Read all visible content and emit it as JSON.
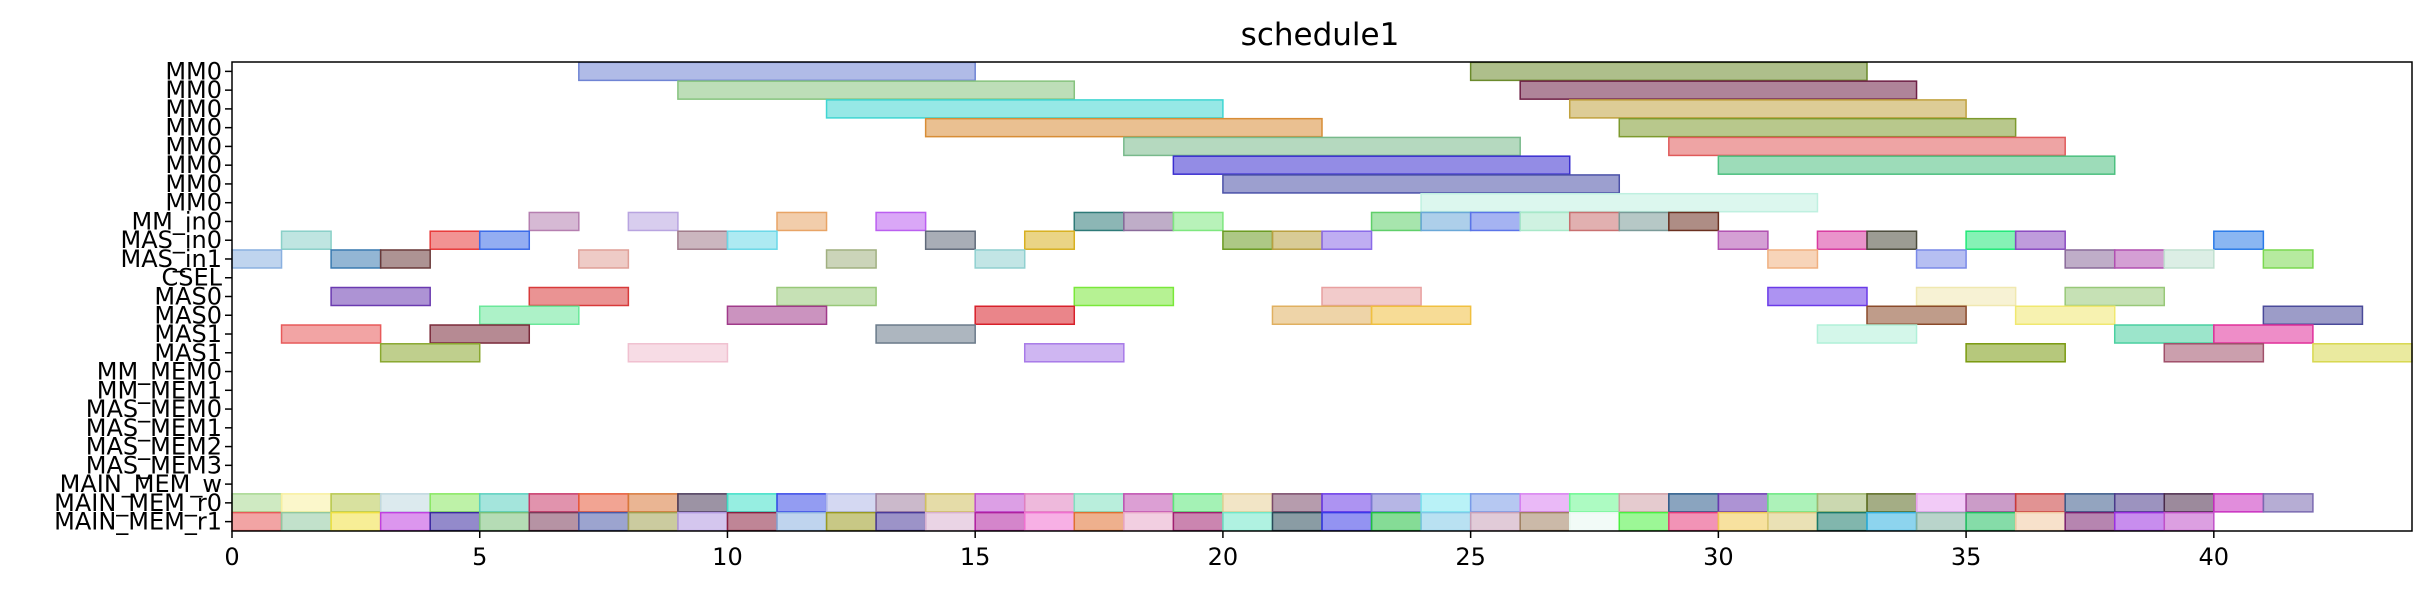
{
  "chart_data": {
    "type": "gantt",
    "title": "schedule1",
    "xlabel": "",
    "ylabel": "",
    "xlim": [
      0,
      44
    ],
    "xticks": [
      0,
      5,
      10,
      15,
      20,
      25,
      30,
      35,
      40
    ],
    "grid": false,
    "rows": [
      "MM0",
      "MM0",
      "MM0",
      "MM0",
      "MM0",
      "MM0",
      "MM0",
      "MM0",
      "MM_in0",
      "MAS_in0",
      "MAS_in1",
      "CSEL",
      "MAS0",
      "MAS0",
      "MAS1",
      "MAS1",
      "MM_MEM0",
      "MM_MEM1",
      "MAS_MEM0",
      "MAS_MEM1",
      "MAS_MEM2",
      "MAS_MEM3",
      "MAIN_MEM_w",
      "MAIN_MEM_r0",
      "MAIN_MEM_r1"
    ],
    "tasks": [
      {
        "row": 0,
        "start": 7,
        "end": 15,
        "color": "#6f84d4"
      },
      {
        "row": 0,
        "start": 25,
        "end": 33,
        "color": "#6b8a2c"
      },
      {
        "row": 1,
        "start": 9,
        "end": 17,
        "color": "#86c37e"
      },
      {
        "row": 1,
        "start": 26,
        "end": 34,
        "color": "#6e1f45"
      },
      {
        "row": 2,
        "start": 12,
        "end": 20,
        "color": "#3fd6d2"
      },
      {
        "row": 2,
        "start": 27,
        "end": 35,
        "color": "#c1a23f"
      },
      {
        "row": 3,
        "start": 14,
        "end": 22,
        "color": "#d88d36"
      },
      {
        "row": 3,
        "start": 28,
        "end": 36,
        "color": "#7d9a2e"
      },
      {
        "row": 4,
        "start": 18,
        "end": 26,
        "color": "#78b98b"
      },
      {
        "row": 4,
        "start": 29,
        "end": 37,
        "color": "#e05a5a"
      },
      {
        "row": 5,
        "start": 19,
        "end": 27,
        "color": "#3a2ed0"
      },
      {
        "row": 5,
        "start": 30,
        "end": 38,
        "color": "#4cc07f"
      },
      {
        "row": 6,
        "start": 20,
        "end": 28,
        "color": "#4b51a8"
      },
      {
        "row": 7,
        "start": 24,
        "end": 32,
        "color": "#bff0e0"
      },
      {
        "row": 8,
        "start": 6,
        "end": 7,
        "color": "#b57fb0"
      },
      {
        "row": 8,
        "start": 8,
        "end": 9,
        "color": "#b8a4e0"
      },
      {
        "row": 8,
        "start": 11,
        "end": 12,
        "color": "#e8a466"
      },
      {
        "row": 8,
        "start": 13,
        "end": 14,
        "color": "#bb5ff0"
      },
      {
        "row": 8,
        "start": 17,
        "end": 18,
        "color": "#2e7a78"
      },
      {
        "row": 8,
        "start": 18,
        "end": 19,
        "color": "#8a6a9a"
      },
      {
        "row": 8,
        "start": 19,
        "end": 20,
        "color": "#7ee77f"
      },
      {
        "row": 8,
        "start": 23,
        "end": 24,
        "color": "#5fcf6a"
      },
      {
        "row": 8,
        "start": 24,
        "end": 25,
        "color": "#6aa8d8"
      },
      {
        "row": 8,
        "start": 25,
        "end": 26,
        "color": "#5b74e8"
      },
      {
        "row": 8,
        "start": 26,
        "end": 27,
        "color": "#a8e8c8"
      },
      {
        "row": 8,
        "start": 27,
        "end": 28,
        "color": "#c87070"
      },
      {
        "row": 8,
        "start": 28,
        "end": 29,
        "color": "#7a9a98"
      },
      {
        "row": 8,
        "start": 29,
        "end": 30,
        "color": "#6b3020"
      },
      {
        "row": 9,
        "start": 1,
        "end": 2,
        "color": "#8ad0c8"
      },
      {
        "row": 9,
        "start": 4,
        "end": 5,
        "color": "#e83a3a"
      },
      {
        "row": 9,
        "start": 5,
        "end": 6,
        "color": "#3a6ae8"
      },
      {
        "row": 9,
        "start": 9,
        "end": 10,
        "color": "#a07a8a"
      },
      {
        "row": 9,
        "start": 10,
        "end": 11,
        "color": "#6ad8e8"
      },
      {
        "row": 9,
        "start": 14,
        "end": 15,
        "color": "#606a7a"
      },
      {
        "row": 9,
        "start": 16,
        "end": 17,
        "color": "#d8b020"
      },
      {
        "row": 9,
        "start": 20,
        "end": 21,
        "color": "#6a9a20"
      },
      {
        "row": 9,
        "start": 21,
        "end": 22,
        "color": "#b8a040"
      },
      {
        "row": 9,
        "start": 22,
        "end": 23,
        "color": "#8a6ae8"
      },
      {
        "row": 9,
        "start": 30,
        "end": 31,
        "color": "#b050b0"
      },
      {
        "row": 9,
        "start": 32,
        "end": 33,
        "color": "#d83aa0"
      },
      {
        "row": 9,
        "start": 33,
        "end": 34,
        "color": "#4a4a3a"
      },
      {
        "row": 9,
        "start": 35,
        "end": 36,
        "color": "#20e878"
      },
      {
        "row": 9,
        "start": 36,
        "end": 37,
        "color": "#8a4ac0"
      },
      {
        "row": 9,
        "start": 40,
        "end": 41,
        "color": "#2a7ae8"
      },
      {
        "row": 10,
        "start": 0,
        "end": 1,
        "color": "#8ab0e0"
      },
      {
        "row": 10,
        "start": 2,
        "end": 3,
        "color": "#3a7ab0"
      },
      {
        "row": 10,
        "start": 3,
        "end": 4,
        "color": "#6a3a3a"
      },
      {
        "row": 10,
        "start": 7,
        "end": 8,
        "color": "#e0a098"
      },
      {
        "row": 10,
        "start": 12,
        "end": 13,
        "color": "#a0b080"
      },
      {
        "row": 10,
        "start": 15,
        "end": 16,
        "color": "#90d0d0"
      },
      {
        "row": 10,
        "start": 31,
        "end": 32,
        "color": "#f0b080"
      },
      {
        "row": 10,
        "start": 34,
        "end": 35,
        "color": "#7a8ae8"
      },
      {
        "row": 10,
        "start": 37,
        "end": 38,
        "color": "#8a6a9a"
      },
      {
        "row": 10,
        "start": 38,
        "end": 39,
        "color": "#b050b0"
      },
      {
        "row": 10,
        "start": 39,
        "end": 40,
        "color": "#c0e0d0"
      },
      {
        "row": 10,
        "start": 41,
        "end": 42,
        "color": "#7ad850"
      },
      {
        "row": 12,
        "start": 2,
        "end": 4,
        "color": "#6a3ab0"
      },
      {
        "row": 12,
        "start": 6,
        "end": 8,
        "color": "#d83a3a"
      },
      {
        "row": 12,
        "start": 11,
        "end": 13,
        "color": "#98c878"
      },
      {
        "row": 12,
        "start": 17,
        "end": 19,
        "color": "#7ae83a"
      },
      {
        "row": 12,
        "start": 22,
        "end": 24,
        "color": "#e8a0a0"
      },
      {
        "row": 12,
        "start": 31,
        "end": 33,
        "color": "#6a3ae8"
      },
      {
        "row": 12,
        "start": 34,
        "end": 36,
        "color": "#f0e8b0"
      },
      {
        "row": 12,
        "start": 37,
        "end": 39,
        "color": "#98c878"
      },
      {
        "row": 13,
        "start": 5,
        "end": 7,
        "color": "#6ae89a"
      },
      {
        "row": 13,
        "start": 10,
        "end": 12,
        "color": "#a03a8a"
      },
      {
        "row": 13,
        "start": 15,
        "end": 17,
        "color": "#d8202a"
      },
      {
        "row": 13,
        "start": 21,
        "end": 23,
        "color": "#e0b060"
      },
      {
        "row": 13,
        "start": 23,
        "end": 25,
        "color": "#f0c040"
      },
      {
        "row": 13,
        "start": 33,
        "end": 35,
        "color": "#8a4a2a"
      },
      {
        "row": 13,
        "start": 36,
        "end": 38,
        "color": "#f0e870"
      },
      {
        "row": 13,
        "start": 41,
        "end": 43,
        "color": "#4a4a9a"
      },
      {
        "row": 14,
        "start": 1,
        "end": 3,
        "color": "#e85a5a"
      },
      {
        "row": 14,
        "start": 4,
        "end": 6,
        "color": "#7a2a3a"
      },
      {
        "row": 14,
        "start": 13,
        "end": 15,
        "color": "#6a7a8a"
      },
      {
        "row": 14,
        "start": 32,
        "end": 34,
        "color": "#b0f0d8"
      },
      {
        "row": 14,
        "start": 38,
        "end": 40,
        "color": "#4ad0a0"
      },
      {
        "row": 14,
        "start": 40,
        "end": 42,
        "color": "#e0309a"
      },
      {
        "row": 15,
        "start": 3,
        "end": 5,
        "color": "#8aa830"
      },
      {
        "row": 15,
        "start": 8,
        "end": 10,
        "color": "#f0c0d0"
      },
      {
        "row": 15,
        "start": 16,
        "end": 18,
        "color": "#a87ae8"
      },
      {
        "row": 15,
        "start": 35,
        "end": 37,
        "color": "#7a9a10"
      },
      {
        "row": 15,
        "start": 39,
        "end": 41,
        "color": "#a0506a"
      },
      {
        "row": 15,
        "start": 42,
        "end": 44,
        "color": "#d8d850"
      }
    ],
    "mem_r0_colors": [
      "#a8d890",
      "#f8f0a0",
      "#b8c850",
      "#c0d8e0",
      "#88e860",
      "#5ad0c0",
      "#c83a6a",
      "#e85a3a",
      "#d8783a",
      "#4a3a5a",
      "#40e0c8",
      "#3a4ae8",
      "#b0b8e8",
      "#a080a0",
      "#d0c060",
      "#c050d0",
      "#e080c0",
      "#80e0c0",
      "#c050b0",
      "#5ae878",
      "#e8d098",
      "#7a4a6a",
      "#6a3ae8",
      "#7a7ad0",
      "#80e8f0",
      "#7a9ae8",
      "#d880f0",
      "#6af890",
      "#d0a0a8",
      "#2a5a8a",
      "#6a3ab0",
      "#6ae880",
      "#a0b870",
      "#5a6a20",
      "#e8a0f0",
      "#a04a9a",
      "#c83a3a",
      "#3a5a8a",
      "#4a3a8a",
      "#4a2a4a",
      "#c830c0",
      "#7a6ab0"
    ],
    "mem_r1_colors": [
      "#e85a5a",
      "#90c8a0",
      "#f0e040",
      "#c040e0",
      "#3a2aa0",
      "#78c078",
      "#7a3a5a",
      "#4a5aa8",
      "#a0a050",
      "#b098e0",
      "#8a2040",
      "#8ab0e0",
      "#9a9a20",
      "#4a3a9a",
      "#d8b0d0",
      "#b020a0",
      "#f070d0",
      "#e07030",
      "#e8a8c8",
      "#a02070",
      "#70e8c8",
      "#2a4a5a",
      "#3a3ae8",
      "#20c040",
      "#80c8e8",
      "#c8a0b8",
      "#a08060",
      "#e8f8f0",
      "#4af040",
      "#e83a7a",
      "#f0c850",
      "#d8c878",
      "#1a7a6a",
      "#30b0e0",
      "#80b0a0",
      "#20c060",
      "#f0c8a0",
      "#7a2070",
      "#9a30e0",
      "#c050c8"
    ]
  }
}
